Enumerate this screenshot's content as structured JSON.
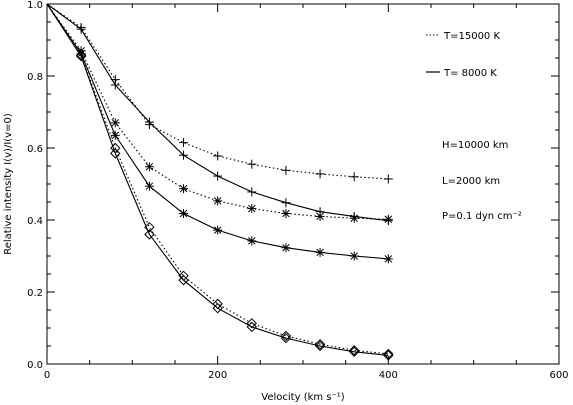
{
  "chart_data": {
    "type": "line",
    "xlabel": "Velocity (km s⁻¹)",
    "ylabel": "Relative intensity I(v)/I(v=0)",
    "xlim": [
      0,
      600
    ],
    "ylim": [
      0,
      1.0
    ],
    "x_ticks": [
      "0",
      "200",
      "400",
      "600"
    ],
    "y_ticks": [
      "0.0",
      "0.2",
      "0.4",
      "0.6",
      "0.8",
      "1.0"
    ],
    "legend": [
      {
        "label": "T=15000  K",
        "style": "dotted"
      },
      {
        "label": "T=  8000  K",
        "style": "solid"
      }
    ],
    "annotations": [
      "H=10000  km",
      "L=2000  km",
      "P=0.1  dyn  cm⁻²"
    ],
    "x": [
      0,
      40,
      80,
      120,
      160,
      200,
      240,
      280,
      320,
      360,
      400
    ],
    "series": [
      {
        "marker": "plus",
        "style": "dotted",
        "values": [
          1.0,
          0.935,
          0.79,
          0.665,
          0.615,
          0.578,
          0.555,
          0.538,
          0.528,
          0.52,
          0.514
        ]
      },
      {
        "marker": "plus",
        "style": "solid",
        "values": [
          1.0,
          0.93,
          0.775,
          0.672,
          0.58,
          0.522,
          0.478,
          0.448,
          0.423,
          0.41,
          0.398
        ]
      },
      {
        "marker": "asterisk",
        "style": "dotted",
        "values": [
          1.0,
          0.87,
          0.67,
          0.548,
          0.487,
          0.453,
          0.432,
          0.418,
          0.41,
          0.405,
          0.402
        ]
      },
      {
        "marker": "asterisk",
        "style": "solid",
        "values": [
          1.0,
          0.862,
          0.635,
          0.494,
          0.418,
          0.372,
          0.342,
          0.323,
          0.31,
          0.3,
          0.292
        ]
      },
      {
        "marker": "diamond",
        "style": "dotted",
        "values": [
          1.0,
          0.858,
          0.6,
          0.38,
          0.245,
          0.167,
          0.113,
          0.078,
          0.055,
          0.038,
          0.028
        ]
      },
      {
        "marker": "diamond",
        "style": "solid",
        "values": [
          1.0,
          0.855,
          0.585,
          0.36,
          0.233,
          0.155,
          0.103,
          0.072,
          0.05,
          0.034,
          0.024
        ]
      }
    ]
  }
}
